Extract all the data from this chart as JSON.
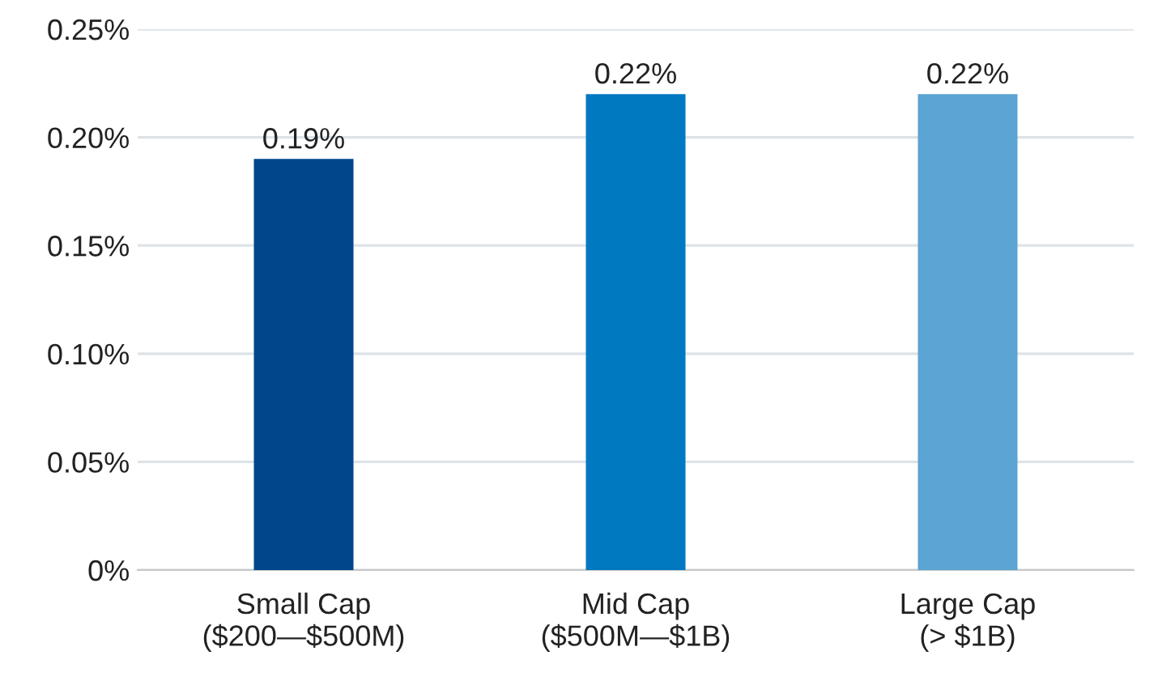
{
  "chart_data": {
    "type": "bar",
    "categories": [
      "Small Cap\n($200—$500M)",
      "Mid Cap\n($500M—$1B)",
      "Large Cap\n(> $1B)"
    ],
    "values": [
      0.19,
      0.22,
      0.22
    ],
    "colors": [
      "#00468b",
      "#0079c1",
      "#5ba4d4"
    ],
    "value_labels": [
      "0.19%",
      "0.22%",
      "0.22%"
    ],
    "ylim": [
      0,
      0.25
    ],
    "yticks": [
      {
        "value": 0,
        "label": "0%"
      },
      {
        "value": 0.05,
        "label": "0.05%"
      },
      {
        "value": 0.1,
        "label": "0.10%"
      },
      {
        "value": 0.15,
        "label": "0.15%"
      },
      {
        "value": 0.2,
        "label": "0.20%"
      },
      {
        "value": 0.25,
        "label": "0.25%"
      }
    ],
    "grid": "y"
  }
}
